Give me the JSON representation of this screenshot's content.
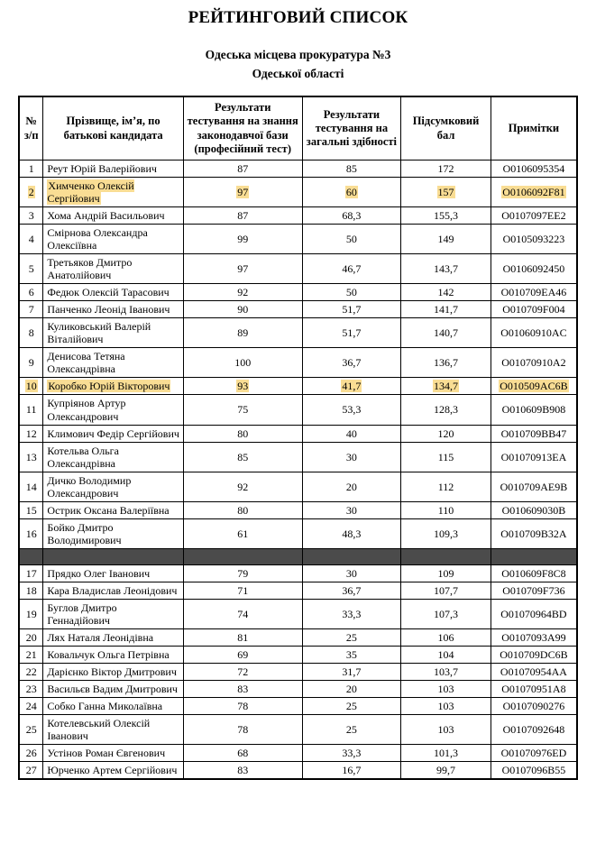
{
  "page": {
    "title": "РЕЙТИНГОВИЙ СПИСОК",
    "subtitle1": "Одеська місцева прокуратура №3",
    "subtitle2": "Одеської області"
  },
  "table": {
    "headers": [
      "№ з/п",
      "Прізвище, ім’я, по батькові кандидата",
      "Результати тестування на знання законодавчої бази (професійний тест)",
      "Результати тестування на загальні здібності",
      "Підсумковий бал",
      "Примітки"
    ],
    "highlight_color": "#f9dd94",
    "separator_color": "#4b4b4b",
    "rows": [
      {
        "num": "1",
        "name": "Реут Юрій Валерійович",
        "prof": "87",
        "general": "85",
        "total": "172",
        "note": "O0106095354",
        "highlighted": false
      },
      {
        "num": "2",
        "name": "Химченко Олексій Сергійович",
        "prof": "97",
        "general": "60",
        "total": "157",
        "note": "O0106092F81",
        "highlighted": true
      },
      {
        "num": "3",
        "name": "Хома Андрій Васильович",
        "prof": "87",
        "general": "68,3",
        "total": "155,3",
        "note": "O0107097EE2",
        "highlighted": false
      },
      {
        "num": "4",
        "name": "Смірнова Олександра Олексіївна",
        "prof": "99",
        "general": "50",
        "total": "149",
        "note": "O0105093223",
        "highlighted": false
      },
      {
        "num": "5",
        "name": "Третьяков Дмитро Анатолійович",
        "prof": "97",
        "general": "46,7",
        "total": "143,7",
        "note": "O0106092450",
        "highlighted": false
      },
      {
        "num": "6",
        "name": "Федюк Олексій Тарасович",
        "prof": "92",
        "general": "50",
        "total": "142",
        "note": "O010709EA46",
        "highlighted": false
      },
      {
        "num": "7",
        "name": "Панченко Леонід Іванович",
        "prof": "90",
        "general": "51,7",
        "total": "141,7",
        "note": "O010709F004",
        "highlighted": false
      },
      {
        "num": "8",
        "name": "Куликовський Валерій Віталійович",
        "prof": "89",
        "general": "51,7",
        "total": "140,7",
        "note": "O01060910AC",
        "highlighted": false
      },
      {
        "num": "9",
        "name": "Денисова Тетяна Олександрівна",
        "prof": "100",
        "general": "36,7",
        "total": "136,7",
        "note": "O01070910A2",
        "highlighted": false
      },
      {
        "num": "10",
        "name": "Коробко Юрій Вікторович",
        "prof": "93",
        "general": "41,7",
        "total": "134,7",
        "note": "O010509AC6B",
        "highlighted": true
      },
      {
        "num": "11",
        "name": "Купріянов Артур Олександрович",
        "prof": "75",
        "general": "53,3",
        "total": "128,3",
        "note": "O010609B908",
        "highlighted": false
      },
      {
        "num": "12",
        "name": "Климович Федір Сергійович",
        "prof": "80",
        "general": "40",
        "total": "120",
        "note": "O010709BB47",
        "highlighted": false
      },
      {
        "num": "13",
        "name": "Котельва Ольга Олександрівна",
        "prof": "85",
        "general": "30",
        "total": "115",
        "note": "O01070913EA",
        "highlighted": false
      },
      {
        "num": "14",
        "name": "Дичко Володимир Олександрович",
        "prof": "92",
        "general": "20",
        "total": "112",
        "note": "O010709AE9B",
        "highlighted": false
      },
      {
        "num": "15",
        "name": "Острик Оксана Валеріївна",
        "prof": "80",
        "general": "30",
        "total": "110",
        "note": "O010609030B",
        "highlighted": false
      },
      {
        "num": "16",
        "name": "Бойко Дмитро Володимирович",
        "prof": "61",
        "general": "48,3",
        "total": "109,3",
        "note": "O010709B32A",
        "highlighted": false
      },
      {
        "type": "separator"
      },
      {
        "num": "17",
        "name": "Прядко Олег Іванович",
        "prof": "79",
        "general": "30",
        "total": "109",
        "note": "O010609F8C8",
        "highlighted": false
      },
      {
        "num": "18",
        "name": "Кара Владислав Леонідович",
        "prof": "71",
        "general": "36,7",
        "total": "107,7",
        "note": "O010709F736",
        "highlighted": false
      },
      {
        "num": "19",
        "name": "Буглов Дмитро Геннадійович",
        "prof": "74",
        "general": "33,3",
        "total": "107,3",
        "note": "O01070964BD",
        "highlighted": false
      },
      {
        "num": "20",
        "name": "Лях Наталя Леонідівна",
        "prof": "81",
        "general": "25",
        "total": "106",
        "note": "O0107093A99",
        "highlighted": false
      },
      {
        "num": "21",
        "name": "Ковальчук Ольга Петрівна",
        "prof": "69",
        "general": "35",
        "total": "104",
        "note": "O010709DC6B",
        "highlighted": false
      },
      {
        "num": "22",
        "name": "Дарієнко Віктор Дмитрович",
        "prof": "72",
        "general": "31,7",
        "total": "103,7",
        "note": "O01070954AA",
        "highlighted": false
      },
      {
        "num": "23",
        "name": "Васильєв Вадим Дмитрович",
        "prof": "83",
        "general": "20",
        "total": "103",
        "note": "O01070951A8",
        "highlighted": false
      },
      {
        "num": "24",
        "name": "Собко Ганна Миколаївна",
        "prof": "78",
        "general": "25",
        "total": "103",
        "note": "O0107090276",
        "highlighted": false
      },
      {
        "num": "25",
        "name": "Котелевський Олексій Іванович",
        "prof": "78",
        "general": "25",
        "total": "103",
        "note": "O0107092648",
        "highlighted": false
      },
      {
        "num": "26",
        "name": "Устінов Роман Євгенович",
        "prof": "68",
        "general": "33,3",
        "total": "101,3",
        "note": "O01070976ED",
        "highlighted": false
      },
      {
        "num": "27",
        "name": "Юрченко Артем Сергійович",
        "prof": "83",
        "general": "16,7",
        "total": "99,7",
        "note": "O0107096B55",
        "highlighted": false
      }
    ]
  }
}
